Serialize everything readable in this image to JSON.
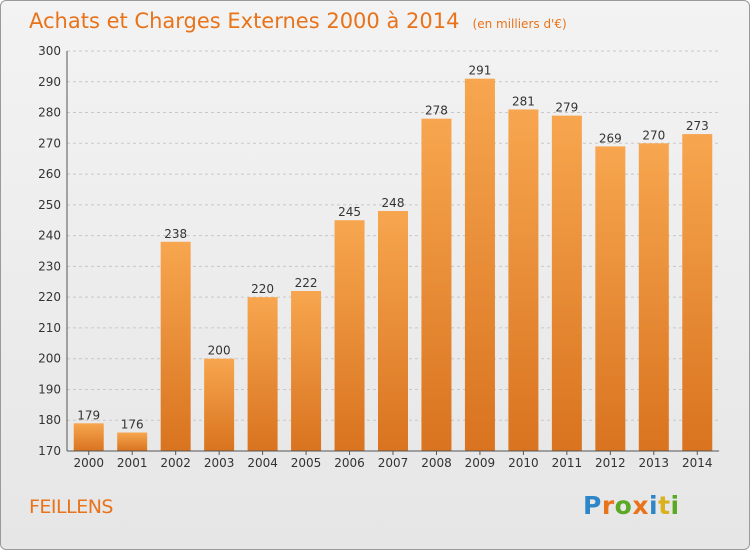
{
  "header": {
    "title": "Achats et Charges Externes 2000 à 2014",
    "unit": "(en milliers d'€)"
  },
  "footer": {
    "commune": "FEILLENS",
    "logo_letters": [
      "P",
      "r",
      "o",
      "x",
      "i",
      "t",
      "i"
    ],
    "logo_colors": [
      "#2e86c9",
      "#e8731a",
      "#5aa823",
      "#e8731a",
      "#2e86c9",
      "#d9b21e",
      "#5aa823"
    ]
  },
  "chart_data": {
    "type": "bar",
    "title": "Achats et Charges Externes 2000 à 2014",
    "subtitle": "(en milliers d'€)",
    "categories": [
      "2000",
      "2001",
      "2002",
      "2003",
      "2004",
      "2005",
      "2006",
      "2007",
      "2008",
      "2009",
      "2010",
      "2011",
      "2012",
      "2013",
      "2014"
    ],
    "values": [
      179,
      176,
      238,
      200,
      220,
      222,
      245,
      248,
      278,
      291,
      281,
      279,
      269,
      270,
      273
    ],
    "ylim": [
      170,
      300
    ],
    "yticks": [
      170,
      180,
      190,
      200,
      210,
      220,
      230,
      240,
      250,
      260,
      270,
      280,
      290,
      300
    ],
    "grid": true,
    "bar_color_top": "#f7a64f",
    "bar_color_bottom": "#d9731f"
  }
}
